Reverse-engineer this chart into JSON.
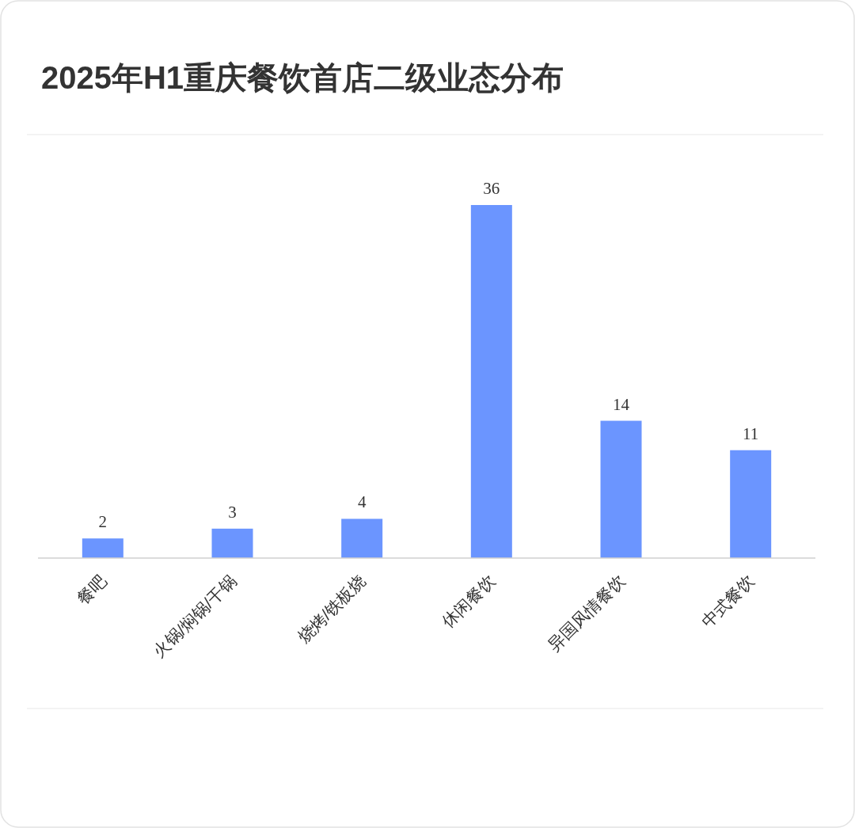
{
  "chart_data": {
    "type": "bar",
    "title": "2025年H1重庆餐饮首店二级业态分布",
    "categories": [
      "餐吧",
      "火锅/焖锅/干锅",
      "烧烤/铁板烧",
      "休闲餐饮",
      "异国风情餐饮",
      "中式餐饮"
    ],
    "values": [
      2,
      3,
      4,
      36,
      14,
      11
    ],
    "color": "#6b95ff",
    "data_labels": true
  }
}
